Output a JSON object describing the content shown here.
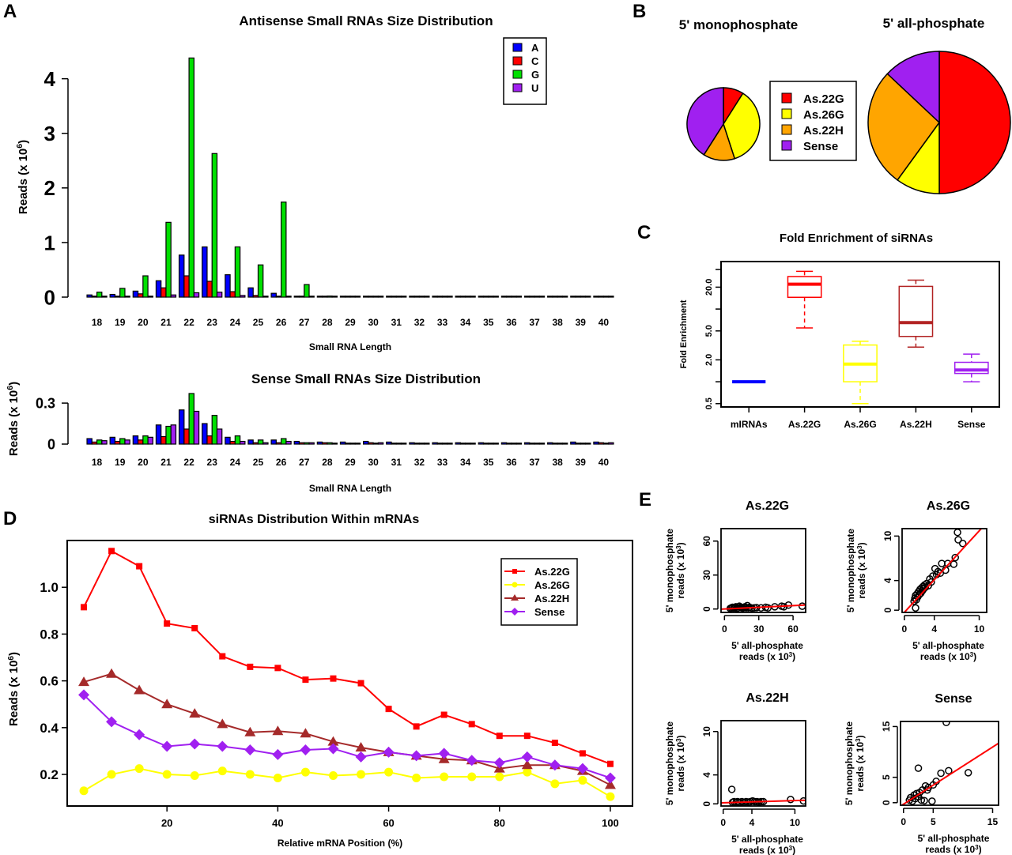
{
  "chart_data": [
    {
      "id": "A_antisense",
      "panel_label": "A",
      "type": "bar",
      "title": "Antisense Small RNAs Size Distribution",
      "xlabel": "Small RNA Length",
      "ylabel": "Reads (x 10",
      "ylabel_sup": "6",
      "ylabel_close": ")",
      "ylim": [
        0,
        4.4
      ],
      "yticks": [
        0,
        1,
        2,
        3,
        4
      ],
      "legend_position": "top-right",
      "categories": [
        "18",
        "19",
        "20",
        "21",
        "22",
        "23",
        "24",
        "25",
        "26",
        "27",
        "28",
        "29",
        "30",
        "31",
        "32",
        "33",
        "34",
        "35",
        "36",
        "37",
        "38",
        "39",
        "40"
      ],
      "series": [
        {
          "name": "A",
          "color": "#0000ff",
          "values": [
            0.04,
            0.05,
            0.11,
            0.3,
            0.77,
            0.92,
            0.41,
            0.17,
            0.07,
            0.01,
            0.01,
            0.0,
            0.0,
            0.0,
            0.0,
            0.0,
            0.0,
            0.0,
            0.0,
            0.0,
            0.0,
            0.0,
            0.0
          ]
        },
        {
          "name": "C",
          "color": "#ff0000",
          "values": [
            0.01,
            0.01,
            0.06,
            0.17,
            0.39,
            0.29,
            0.1,
            0.03,
            0.01,
            0.0,
            0.0,
            0.0,
            0.0,
            0.0,
            0.0,
            0.0,
            0.0,
            0.0,
            0.0,
            0.0,
            0.0,
            0.0,
            0.0
          ]
        },
        {
          "name": "G",
          "color": "#00e000",
          "values": [
            0.09,
            0.16,
            0.39,
            1.37,
            4.38,
            2.63,
            0.92,
            0.59,
            1.74,
            0.23,
            0.02,
            0.01,
            0.0,
            0.0,
            0.0,
            0.0,
            0.0,
            0.0,
            0.0,
            0.0,
            0.0,
            0.0,
            0.0
          ]
        },
        {
          "name": "U",
          "color": "#a020f0",
          "values": [
            0.01,
            0.01,
            0.01,
            0.04,
            0.08,
            0.09,
            0.03,
            0.01,
            0.01,
            0.0,
            0.0,
            0.0,
            0.0,
            0.0,
            0.0,
            0.0,
            0.0,
            0.0,
            0.0,
            0.0,
            0.0,
            0.0,
            0.0
          ]
        }
      ]
    },
    {
      "id": "A_sense",
      "type": "bar",
      "title": "Sense Small RNAs Size Distribution",
      "xlabel": "Small RNA Length",
      "ylabel": "Reads (x 10",
      "ylabel_sup": "6",
      "ylabel_close": ")",
      "ylim": [
        0,
        0.37
      ],
      "yticks": [
        0,
        0.3
      ],
      "ytick_labels": [
        "0",
        "0.3"
      ],
      "categories": [
        "18",
        "19",
        "20",
        "21",
        "22",
        "23",
        "24",
        "25",
        "26",
        "27",
        "28",
        "29",
        "30",
        "31",
        "32",
        "33",
        "34",
        "35",
        "36",
        "37",
        "38",
        "39",
        "40"
      ],
      "series": [
        {
          "name": "A",
          "color": "#0000ff",
          "values": [
            0.04,
            0.05,
            0.06,
            0.14,
            0.25,
            0.15,
            0.05,
            0.03,
            0.03,
            0.02,
            0.015,
            0.015,
            0.02,
            0.015,
            0.01,
            0.01,
            0.01,
            0.01,
            0.01,
            0.01,
            0.01,
            0.015,
            0.015
          ]
        },
        {
          "name": "C",
          "color": "#ff0000",
          "values": [
            0.015,
            0.02,
            0.03,
            0.055,
            0.11,
            0.06,
            0.02,
            0.01,
            0.01,
            0.01,
            0.01,
            0.005,
            0.01,
            0.005,
            0.005,
            0.005,
            0.005,
            0.005,
            0.005,
            0.005,
            0.005,
            0.005,
            0.01
          ]
        },
        {
          "name": "G",
          "color": "#00e000",
          "values": [
            0.03,
            0.04,
            0.06,
            0.13,
            0.37,
            0.21,
            0.06,
            0.03,
            0.04,
            0.01,
            0.01,
            0.005,
            0.005,
            0.005,
            0.005,
            0.005,
            0.005,
            0.005,
            0.005,
            0.005,
            0.005,
            0.005,
            0.005
          ]
        },
        {
          "name": "U",
          "color": "#a020f0",
          "values": [
            0.025,
            0.03,
            0.05,
            0.14,
            0.24,
            0.11,
            0.02,
            0.01,
            0.02,
            0.01,
            0.005,
            0.005,
            0.01,
            0.005,
            0.005,
            0.005,
            0.005,
            0.005,
            0.005,
            0.005,
            0.005,
            0.005,
            0.01
          ]
        }
      ]
    },
    {
      "id": "B_mono",
      "panel_label": "B",
      "type": "pie",
      "title": "5' monophosphate",
      "relative_size": 0.52,
      "slices": [
        {
          "label": "As.22G",
          "value": 9,
          "color": "#ff0000"
        },
        {
          "label": "As.26G",
          "value": 36,
          "color": "#ffff00"
        },
        {
          "label": "As.22H",
          "value": 14,
          "color": "#ffa500"
        },
        {
          "label": "Sense",
          "value": 41,
          "color": "#a020f0"
        }
      ]
    },
    {
      "id": "B_all",
      "type": "pie",
      "title": "5' all-phosphate",
      "relative_size": 1.0,
      "slices": [
        {
          "label": "As.22G",
          "value": 50,
          "color": "#ff0000"
        },
        {
          "label": "As.26G",
          "value": 10,
          "color": "#ffff00"
        },
        {
          "label": "As.22H",
          "value": 27,
          "color": "#ffa500"
        },
        {
          "label": "Sense",
          "value": 13,
          "color": "#a020f0"
        }
      ],
      "legend": [
        "As.22G",
        "As.26G",
        "As.22H",
        "Sense"
      ],
      "legend_position": "center-between-pies"
    },
    {
      "id": "C_box",
      "panel_label": "C",
      "type": "box",
      "title": "Fold Enrichment of siRNAs",
      "ylabel": "Fold Enrichment",
      "yscale": "log",
      "ylim": [
        0.45,
        45
      ],
      "yticks": [
        0.5,
        2.0,
        5.0,
        20.0
      ],
      "ytick_labels": [
        "0.5",
        "2.0",
        "5.0",
        "20.0"
      ],
      "minor_yticks": [
        1.0,
        10.0
      ],
      "categories": [
        "mIRNAs",
        "As.22G",
        "As.26G",
        "As.22H",
        "Sense"
      ],
      "boxes": [
        {
          "name": "mIRNAs",
          "color": "#0000ff",
          "min": 1.0,
          "q1": 1.0,
          "median": 1.0,
          "q3": 1.0,
          "max": 1.0
        },
        {
          "name": "As.22G",
          "color": "#ff0000",
          "min": 5.5,
          "q1": 14.5,
          "median": 22.0,
          "q3": 28.0,
          "max": 33.0
        },
        {
          "name": "As.26G",
          "color": "#ffff00",
          "min": 0.5,
          "q1": 1.0,
          "median": 1.75,
          "q3": 3.2,
          "max": 3.6
        },
        {
          "name": "As.22H",
          "color": "#b22222",
          "min": 3.0,
          "q1": 4.2,
          "median": 6.5,
          "q3": 20.5,
          "max": 25.0
        },
        {
          "name": "Sense",
          "color": "#a020f0",
          "min": 1.0,
          "q1": 1.3,
          "median": 1.45,
          "q3": 1.85,
          "max": 2.4
        }
      ]
    },
    {
      "id": "D_line",
      "panel_label": "D",
      "type": "line",
      "title": "siRNAs Distribution Within mRNAs",
      "xlabel": "Relative mRNA Position (%)",
      "ylabel": "Reads (x 10",
      "ylabel_sup": "6",
      "ylabel_close": ")",
      "xlim": [
        2,
        104
      ],
      "ylim": [
        0.065,
        1.2
      ],
      "xticks": [
        20,
        40,
        60,
        80,
        100
      ],
      "yticks": [
        0.2,
        0.4,
        0.6,
        0.8,
        1.0
      ],
      "ytick_labels": [
        "0.2",
        "0.4",
        "0.6",
        "0.8",
        "1.0"
      ],
      "legend_position": "top-right",
      "x": [
        5,
        10,
        15,
        20,
        25,
        30,
        35,
        40,
        45,
        50,
        55,
        60,
        65,
        70,
        75,
        80,
        85,
        90,
        95,
        100
      ],
      "series": [
        {
          "name": "As.22G",
          "color": "#ff0000",
          "marker": "square",
          "values": [
            0.915,
            1.155,
            1.09,
            0.845,
            0.825,
            0.705,
            0.66,
            0.655,
            0.605,
            0.61,
            0.59,
            0.48,
            0.405,
            0.455,
            0.415,
            0.365,
            0.365,
            0.335,
            0.29,
            0.245
          ]
        },
        {
          "name": "As.26G",
          "color": "#ffff00",
          "marker": "circle",
          "values": [
            0.13,
            0.2,
            0.225,
            0.2,
            0.195,
            0.215,
            0.2,
            0.185,
            0.21,
            0.195,
            0.2,
            0.21,
            0.185,
            0.19,
            0.19,
            0.19,
            0.21,
            0.16,
            0.175,
            0.105
          ]
        },
        {
          "name": "As.22H",
          "color": "#a52a2a",
          "marker": "triangle",
          "values": [
            0.595,
            0.63,
            0.56,
            0.5,
            0.46,
            0.415,
            0.38,
            0.385,
            0.375,
            0.34,
            0.315,
            0.295,
            0.28,
            0.265,
            0.26,
            0.225,
            0.24,
            0.24,
            0.215,
            0.155
          ]
        },
        {
          "name": "Sense",
          "color": "#a020f0",
          "marker": "diamond",
          "values": [
            0.54,
            0.425,
            0.37,
            0.32,
            0.33,
            0.32,
            0.305,
            0.285,
            0.305,
            0.31,
            0.275,
            0.295,
            0.28,
            0.29,
            0.26,
            0.25,
            0.275,
            0.24,
            0.225,
            0.185
          ]
        }
      ]
    },
    {
      "id": "E_22G",
      "panel_label": "E",
      "type": "scatter",
      "title": "As.22G",
      "xlabel_line1": "5' all-phosphate",
      "xlabel_line2": "reads (x 10",
      "ylabel_line1": "5' monophosphate",
      "ylabel_line2": "reads (x 10",
      "label_sup": "3",
      "xlim": [
        -3,
        71
      ],
      "ylim": [
        -3,
        71
      ],
      "xticks": [
        0,
        30,
        60
      ],
      "yticks": [
        0,
        30,
        60
      ],
      "fit": {
        "slope": 0.05,
        "intercept": 0.0,
        "color": "#ff0000"
      },
      "points": [
        [
          5,
          0.5
        ],
        [
          6,
          1
        ],
        [
          7,
          1.5
        ],
        [
          8,
          0.8
        ],
        [
          9,
          1.2
        ],
        [
          10,
          2
        ],
        [
          11,
          0.5
        ],
        [
          12,
          1
        ],
        [
          13,
          2.5
        ],
        [
          14,
          1.5
        ],
        [
          15,
          1
        ],
        [
          16,
          0.8
        ],
        [
          17,
          1.5
        ],
        [
          18,
          2
        ],
        [
          19,
          1
        ],
        [
          20,
          3
        ],
        [
          21,
          1
        ],
        [
          22,
          1.5
        ],
        [
          24,
          0.8
        ],
        [
          26,
          1
        ],
        [
          28,
          1.2
        ],
        [
          32,
          1
        ],
        [
          36,
          1.5
        ],
        [
          38,
          1
        ],
        [
          44,
          2
        ],
        [
          50,
          2.5
        ],
        [
          52,
          2
        ],
        [
          56,
          3.5
        ],
        [
          68,
          2.5
        ]
      ]
    },
    {
      "id": "E_26G",
      "type": "scatter",
      "title": "As.26G",
      "xlabel_line1": "5' all-phosphate",
      "xlabel_line2": "reads (x 10",
      "ylabel_line1": "5' monophosphate",
      "ylabel_line2": "reads (x 10",
      "label_sup": "3",
      "xlim": [
        -0.3,
        11
      ],
      "ylim": [
        -0.3,
        11
      ],
      "xticks": [
        0,
        4,
        10
      ],
      "yticks": [
        0,
        4,
        10
      ],
      "fit": {
        "slope": 1.1,
        "intercept": -0.3,
        "color": "#ff0000"
      },
      "points": [
        [
          1.5,
          0.3
        ],
        [
          1.3,
          1.2
        ],
        [
          1.4,
          1.6
        ],
        [
          1.5,
          2.0
        ],
        [
          1.6,
          1.4
        ],
        [
          1.7,
          2.2
        ],
        [
          1.8,
          1.8
        ],
        [
          1.9,
          2.5
        ],
        [
          2.0,
          2.1
        ],
        [
          2.1,
          2.8
        ],
        [
          2.2,
          2.3
        ],
        [
          2.3,
          3.0
        ],
        [
          2.4,
          2.6
        ],
        [
          2.5,
          3.2
        ],
        [
          2.6,
          2.9
        ],
        [
          2.7,
          3.4
        ],
        [
          2.8,
          3.1
        ],
        [
          3.0,
          3.6
        ],
        [
          3.2,
          3.3
        ],
        [
          3.4,
          4.2
        ],
        [
          3.6,
          3.8
        ],
        [
          3.8,
          4.6
        ],
        [
          4.1,
          5.6
        ],
        [
          4.3,
          4.8
        ],
        [
          4.5,
          5.2
        ],
        [
          4.8,
          5.0
        ],
        [
          5.0,
          6.3
        ],
        [
          5.5,
          5.4
        ],
        [
          5.8,
          6.3
        ],
        [
          6.6,
          6.2
        ],
        [
          6.8,
          7.1
        ],
        [
          7.2,
          9.5
        ],
        [
          7.1,
          10.5
        ],
        [
          7.8,
          9.0
        ]
      ]
    },
    {
      "id": "E_22H",
      "type": "scatter",
      "title": "As.22H",
      "xlabel_line1": "5' all-phosphate",
      "xlabel_line2": "reads (x 10",
      "ylabel_line1": "5' monophosphate",
      "ylabel_line2": "reads (x 10",
      "label_sup": "3",
      "xlim": [
        -0.3,
        11.5
      ],
      "ylim": [
        -0.3,
        11.5
      ],
      "xticks": [
        0,
        4,
        10
      ],
      "yticks": [
        0,
        4,
        10
      ],
      "fit": {
        "slope": 0.03,
        "intercept": 0.15,
        "color": "#ff0000"
      },
      "points": [
        [
          1.2,
          2.0
        ],
        [
          1.3,
          0.2
        ],
        [
          1.5,
          0.3
        ],
        [
          1.8,
          0.2
        ],
        [
          2.0,
          0.3
        ],
        [
          2.3,
          0.2
        ],
        [
          2.6,
          0.3
        ],
        [
          2.9,
          0.2
        ],
        [
          3.2,
          0.3
        ],
        [
          3.5,
          0.25
        ],
        [
          3.8,
          0.3
        ],
        [
          4.1,
          0.4
        ],
        [
          4.4,
          0.3
        ],
        [
          4.7,
          0.3
        ],
        [
          5.0,
          0.25
        ],
        [
          5.3,
          0.3
        ],
        [
          5.6,
          0.3
        ],
        [
          9.4,
          0.6
        ],
        [
          11.2,
          0.4
        ]
      ]
    },
    {
      "id": "E_sense",
      "type": "scatter",
      "title": "Sense",
      "xlabel_line1": "5' all-phosphate",
      "xlabel_line2": "reads (x 10",
      "ylabel_line1": "5' monophosphate",
      "ylabel_line2": "reads (x 10",
      "label_sup": "3",
      "xlim": [
        -0.5,
        16
      ],
      "ylim": [
        -0.5,
        16
      ],
      "xticks": [
        0,
        5,
        15
      ],
      "yticks": [
        0,
        5,
        15
      ],
      "fit": {
        "slope": 0.75,
        "intercept": -0.3,
        "color": "#ff0000"
      },
      "points": [
        [
          1.0,
          0.5
        ],
        [
          1.2,
          1.0
        ],
        [
          1.5,
          0.3
        ],
        [
          1.8,
          1.5
        ],
        [
          2.0,
          0.8
        ],
        [
          2.2,
          1.8
        ],
        [
          2.5,
          1.2
        ],
        [
          2.7,
          2.0
        ],
        [
          3.0,
          0.5
        ],
        [
          3.2,
          2.5
        ],
        [
          3.5,
          0.4
        ],
        [
          3.7,
          3.3
        ],
        [
          4.0,
          2.5
        ],
        [
          4.2,
          3.0
        ],
        [
          4.8,
          0.3
        ],
        [
          5.0,
          3.5
        ],
        [
          5.5,
          4.2
        ],
        [
          6.3,
          5.8
        ],
        [
          7.6,
          6.3
        ],
        [
          10.9,
          5.9
        ],
        [
          2.5,
          6.8
        ],
        [
          7.2,
          15.8
        ]
      ]
    }
  ]
}
